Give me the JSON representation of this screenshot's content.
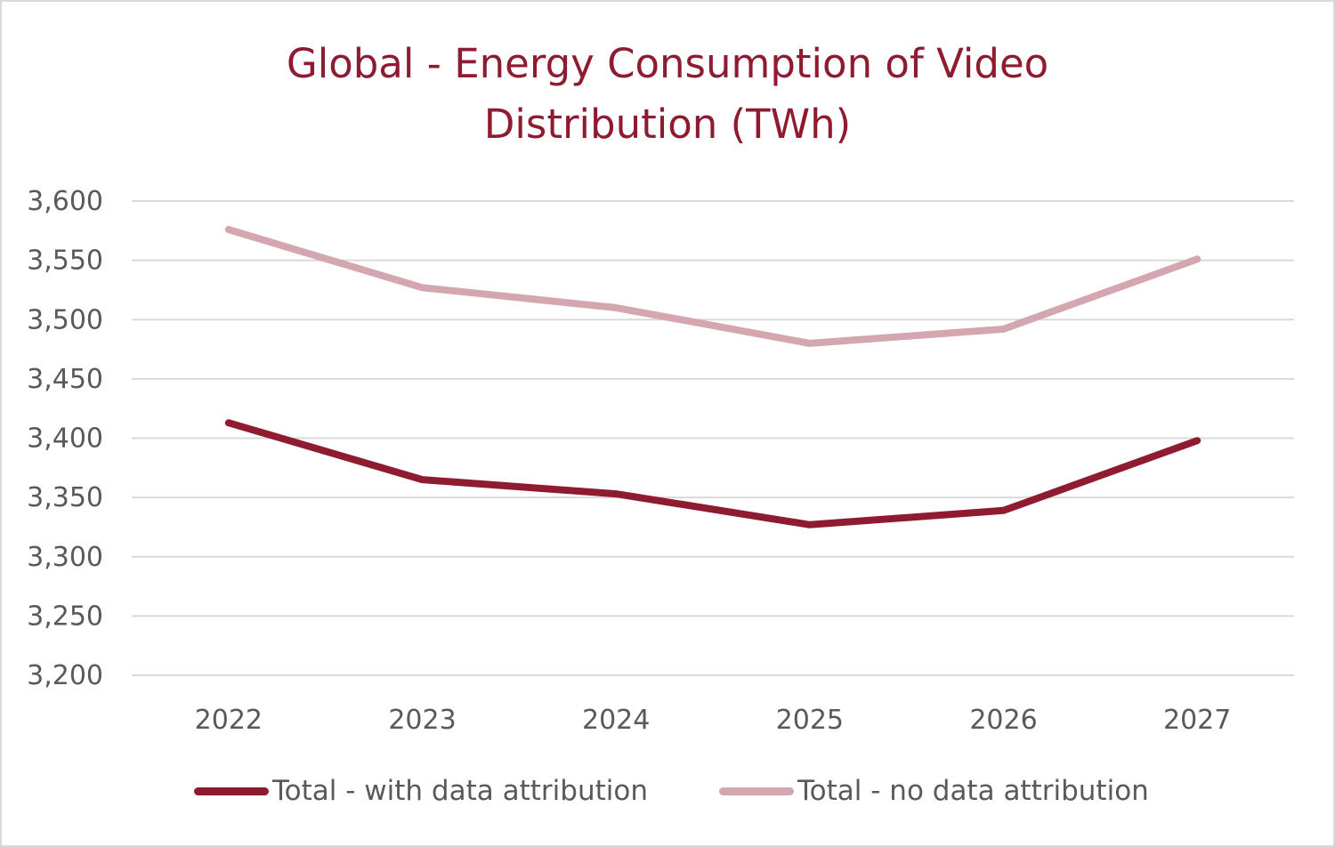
{
  "chart_data": {
    "type": "line",
    "title_lines": [
      "Global - Energy Consumption of Video",
      "Distribution (TWh)"
    ],
    "categories": [
      "2022",
      "2023",
      "2024",
      "2025",
      "2026",
      "2027"
    ],
    "series": [
      {
        "name": "Total - with data attribution",
        "color": "#8e1b30",
        "values": [
          3413,
          3365,
          3353,
          3327,
          3339,
          3398
        ]
      },
      {
        "name": "Total - no data attribution",
        "color": "#d4a6b0",
        "values": [
          3576,
          3527,
          3510,
          3480,
          3492,
          3551
        ]
      }
    ],
    "yticks": [
      "3,600",
      "3,550",
      "3,500",
      "3,450",
      "3,400",
      "3,350",
      "3,300",
      "3,250",
      "3,200"
    ],
    "ylim": [
      3200,
      3600
    ],
    "xlabel": "",
    "ylabel": "",
    "grid": true,
    "legend_position": "bottom"
  }
}
